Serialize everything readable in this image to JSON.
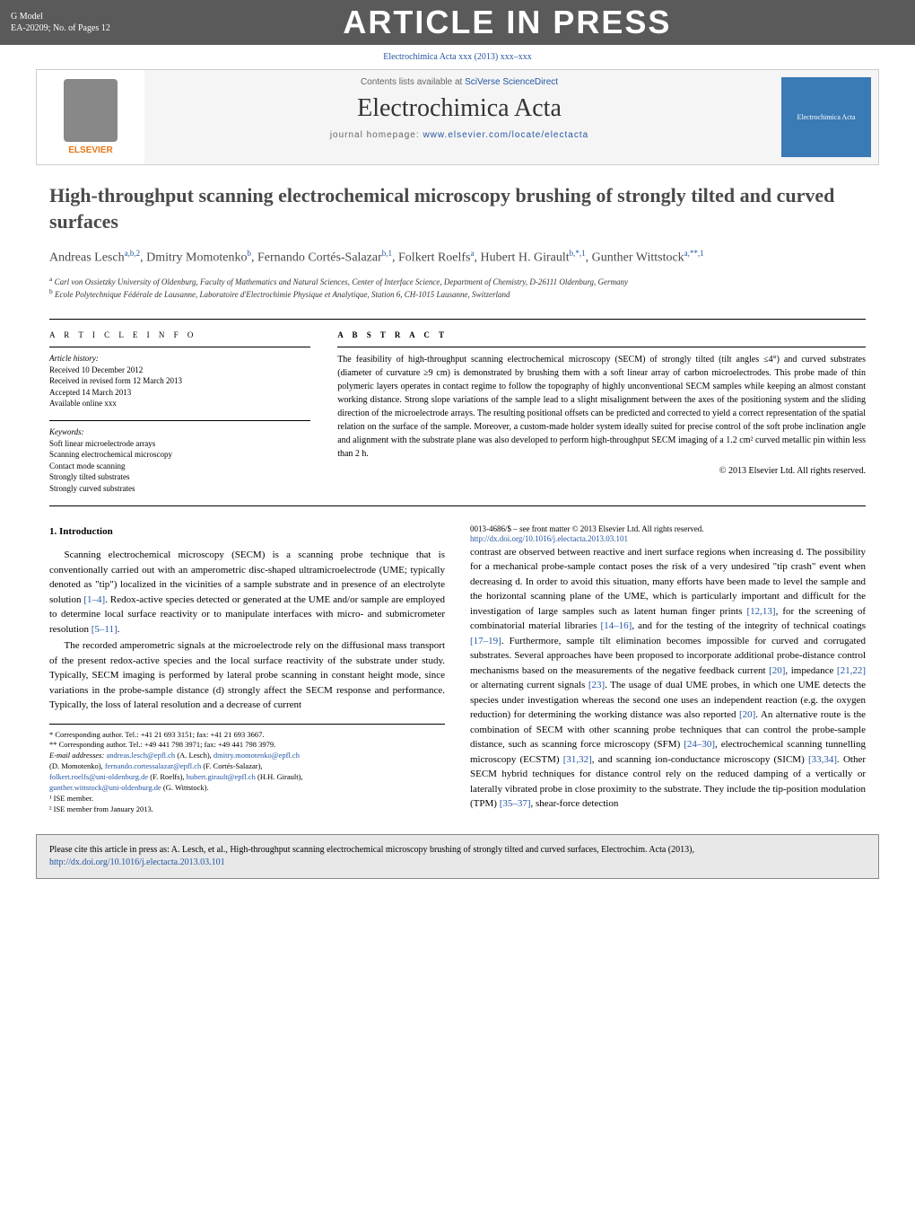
{
  "header": {
    "gmodel_line1": "G Model",
    "gmodel_line2": "EA-20209;   No. of Pages 12",
    "in_press": "ARTICLE IN PRESS"
  },
  "citation_top": "Electrochimica Acta xxx (2013) xxx–xxx",
  "banner": {
    "contents_text": "Contents lists available at ",
    "contents_link": "SciVerse ScienceDirect",
    "journal": "Electrochimica Acta",
    "homepage_label": "journal homepage: ",
    "homepage_url": "www.elsevier.com/locate/electacta",
    "elsevier": "ELSEVIER",
    "cover_text": "Electrochimica Acta"
  },
  "title": "High-throughput scanning electrochemical microscopy brushing of strongly tilted and curved surfaces",
  "authors_html": "Andreas Lesch<sup>a,b,2</sup>, Dmitry Momotenko<sup>b</sup>, Fernando Cortés-Salazar<sup>b,1</sup>, Folkert Roelfs<sup>a</sup>, Hubert H. Girault<sup>b,*,1</sup>, Gunther Wittstock<sup>a,**,1</sup>",
  "affiliations": {
    "a": "Carl von Ossietzky University of Oldenburg, Faculty of Mathematics and Natural Sciences, Center of Interface Science, Department of Chemistry, D-26111 Oldenburg, Germany",
    "b": "Ecole Polytechnique Fédérale de Lausanne, Laboratoire d'Electrochimie Physique et Analytique, Station 6, CH-1015 Lausanne, Switzerland"
  },
  "article_info": {
    "heading": "a r t i c l e   i n f o",
    "history_label": "Article history:",
    "received": "Received 10 December 2012",
    "revised": "Received in revised form 12 March 2013",
    "accepted": "Accepted 14 March 2013",
    "online": "Available online xxx",
    "keywords_label": "Keywords:",
    "kw1": "Soft linear microelectrode arrays",
    "kw2": "Scanning electrochemical microscopy",
    "kw3": "Contact mode scanning",
    "kw4": "Strongly tilted substrates",
    "kw5": "Strongly curved substrates"
  },
  "abstract": {
    "heading": "a b s t r a c t",
    "text": "The feasibility of high-throughput scanning electrochemical microscopy (SECM) of strongly tilted (tilt angles ≤4°) and curved substrates (diameter of curvature ≥9 cm) is demonstrated by brushing them with a soft linear array of carbon microelectrodes. This probe made of thin polymeric layers operates in contact regime to follow the topography of highly unconventional SECM samples while keeping an almost constant working distance. Strong slope variations of the sample lead to a slight misalignment between the axes of the positioning system and the sliding direction of the microelectrode arrays. The resulting positional offsets can be predicted and corrected to yield a correct representation of the spatial relation on the surface of the sample. Moreover, a custom-made holder system ideally suited for precise control of the soft probe inclination angle and alignment with the substrate plane was also developed to perform high-throughput SECM imaging of a 1.2 cm² curved metallic pin within less than 2 h.",
    "copyright": "© 2013 Elsevier Ltd. All rights reserved."
  },
  "intro": {
    "heading": "1.  Introduction",
    "p1": "Scanning electrochemical microscopy (SECM) is a scanning probe technique that is conventionally carried out with an amperometric disc-shaped ultramicroelectrode (UME; typically denoted as \"tip\") localized in the vicinities of a sample substrate and in presence of an electrolyte solution [1–4]. Redox-active species detected or generated at the UME and/or sample are employed to determine local surface reactivity or to manipulate interfaces with micro- and submicrometer resolution [5–11].",
    "p2": "The recorded amperometric signals at the microelectrode rely on the diffusional mass transport of the present redox-active species and the local surface reactivity of the substrate under study. Typically, SECM imaging is performed by lateral probe scanning in constant height mode, since variations in the probe-sample distance (d) strongly affect the SECM response and performance. Typically, the loss of lateral resolution and a decrease of current",
    "p3": "contrast are observed between reactive and inert surface regions when increasing d. The possibility for a mechanical probe-sample contact poses the risk of a very undesired \"tip crash\" event when decreasing d. In order to avoid this situation, many efforts have been made to level the sample and the horizontal scanning plane of the UME, which is particularly important and difficult for the investigation of large samples such as latent human finger prints [12,13], for the screening of combinatorial material libraries [14–16], and for the testing of the integrity of technical coatings [17–19]. Furthermore, sample tilt elimination becomes impossible for curved and corrugated substrates. Several approaches have been proposed to incorporate additional probe-distance control mechanisms based on the measurements of the negative feedback current [20], impedance [21,22] or alternating current signals [23]. The usage of dual UME probes, in which one UME detects the species under investigation whereas the second one uses an independent reaction (e.g. the oxygen reduction) for determining the working distance was also reported [20]. An alternative route is the combination of SECM with other scanning probe techniques that can control the probe-sample distance, such as scanning force microscopy (SFM) [24–30], electrochemical scanning tunnelling microscopy (ECSTM) [31,32], and scanning ion-conductance microscopy (SICM) [33,34]. Other SECM hybrid techniques for distance control rely on the reduced damping of a vertically or laterally vibrated probe in close proximity to the substrate. They include the tip-position modulation (TPM) [35–37], shear-force detection"
  },
  "footnotes": {
    "corr1": "* Corresponding author. Tel.: +41 21 693 3151; fax: +41 21 693 3667.",
    "corr2": "** Corresponding author. Tel.: +49 441 798 3971; fax: +49 441 798 3979.",
    "emails_label": "E-mail addresses: ",
    "e1": "andreas.lesch@epfl.ch",
    "e1n": " (A. Lesch), ",
    "e2": "dmitry.momotenko@epfl.ch",
    "e2n": " (D. Momotenko), ",
    "e3": "fernando.cortessalazar@epfl.ch",
    "e3n": " (F. Cortés-Salazar), ",
    "e4": "folkert.roelfs@uni-oldenburg.de",
    "e4n": " (F. Roelfs), ",
    "e5": "hubert.girault@epfl.ch",
    "e5n": " (H.H. Girault), ",
    "e6": "gunther.wittstock@uni-oldenburg.de",
    "e6n": " (G. Wittstock).",
    "n1": "¹ ISE member.",
    "n2": "² ISE member from January 2013."
  },
  "bottom": {
    "issn": "0013-4686/$ – see front matter © 2013 Elsevier Ltd. All rights reserved.",
    "doi": "http://dx.doi.org/10.1016/j.electacta.2013.03.101"
  },
  "citation_box": {
    "text": "Please cite this article in press as: A. Lesch, et al., High-throughput scanning electrochemical microscopy brushing of strongly tilted and curved surfaces, Electrochim. Acta (2013), ",
    "link": "http://dx.doi.org/10.1016/j.electacta.2013.03.101"
  },
  "colors": {
    "link": "#2456a3",
    "header_bg": "#5a5a5a",
    "elsevier_orange": "#e67817",
    "box_bg": "#e8e8e8"
  }
}
